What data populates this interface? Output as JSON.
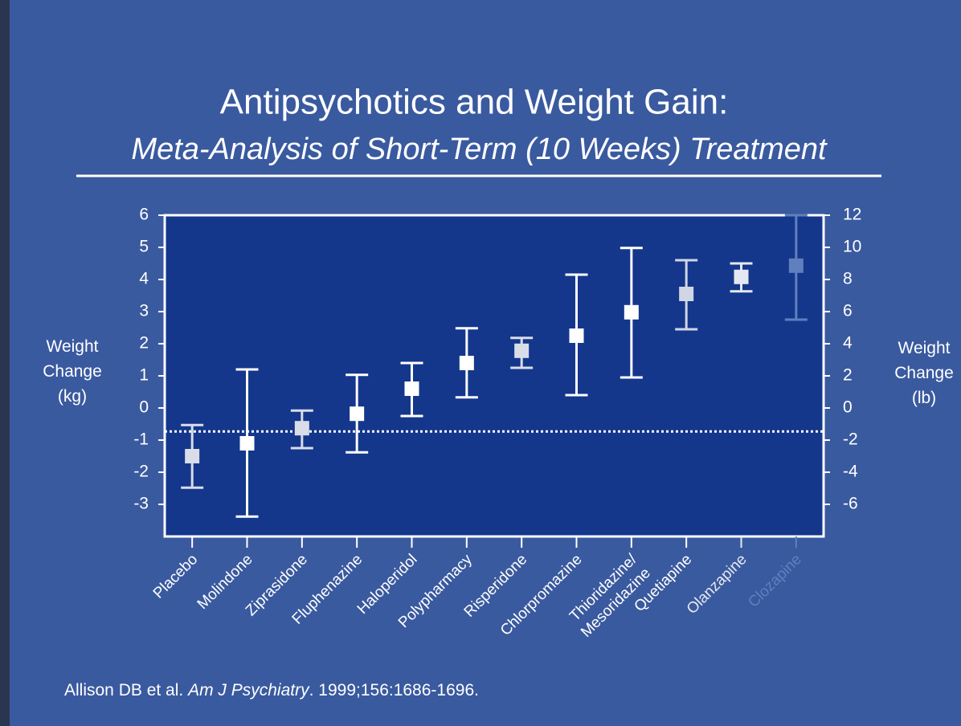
{
  "chart_data": {
    "type": "errorbar",
    "title": "Antipsychotics and Weight Gain:",
    "subtitle": "Meta-Analysis of Short-Term (10 Weeks) Treatment",
    "y_label": "Weight Change (kg)",
    "y2_label": "Weight Change (lb)",
    "categories": [
      "Placebo",
      "Molindone",
      "Ziprasidone",
      "Fluphenazine",
      "Haloperidol",
      "Polypharmacy",
      "Risperidone",
      "Chlorpromazine",
      "Thioridazine/ Mesoridazine",
      "Quetiapine",
      "Olanzapine",
      "Clozapine"
    ],
    "values": [
      -1.5,
      -1.1,
      -0.63,
      -0.18,
      0.6,
      1.4,
      1.78,
      2.25,
      2.98,
      3.55,
      4.08,
      4.43
    ],
    "lower": [
      -2.48,
      -3.38,
      -1.25,
      -1.38,
      -0.25,
      0.33,
      1.25,
      0.4,
      0.95,
      2.45,
      3.63,
      2.75
    ],
    "upper": [
      -0.53,
      1.2,
      -0.08,
      1.03,
      1.4,
      2.48,
      2.18,
      4.15,
      4.98,
      4.6,
      4.5,
      6.0
    ],
    "point_colors": [
      "#d8dde8",
      "#ffffff",
      "#d8dde8",
      "#ffffff",
      "#ffffff",
      "#ffffff",
      "#d8dde8",
      "#ffffff",
      "#ffffff",
      "#d0d6e4",
      "#e4e8f0",
      "#5f7fbf"
    ],
    "label_colors": [
      "#ffffff",
      "#ffffff",
      "#ffffff",
      "#ffffff",
      "#ffffff",
      "#ffffff",
      "#ffffff",
      "#ffffff",
      "#ffffff",
      "#ffffff",
      "#e4e8f0",
      "#5f7fbf"
    ],
    "ylim": [
      -4,
      6
    ],
    "yticks": [
      -3,
      -2,
      -1,
      0,
      1,
      2,
      3,
      4,
      5,
      6
    ],
    "y2lim": [
      -8,
      12
    ],
    "y2ticks": [
      -6,
      -4,
      -2,
      0,
      2,
      4,
      6,
      8,
      10,
      12
    ],
    "reference_line": -0.73,
    "plot_color": "#14378c",
    "background": "#3a5a9f",
    "source": {
      "authors": "Allison DB et al. ",
      "journal": "Am J Psychiatry",
      "citation": ". 1999;156:1686-1696."
    }
  }
}
